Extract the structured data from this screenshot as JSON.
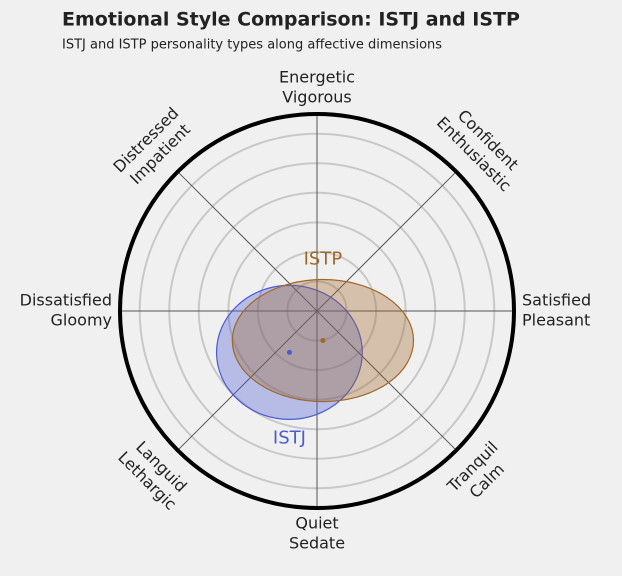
{
  "chart_data": {
    "type": "circumplex",
    "title": "Emotional Style Comparison: ISTJ and ISTP",
    "subtitle": "ISTJ and ISTP personality types along affective dimensions",
    "dimensions": [
      [
        "Energetic",
        "Vigorous"
      ],
      [
        "Confident",
        "Enthusiastic"
      ],
      [
        "Satisfied",
        "Pleasant"
      ],
      [
        "Tranquil",
        "Calm"
      ],
      [
        "Quiet",
        "Sedate"
      ],
      [
        "Languid",
        "Lethargic"
      ],
      [
        "Dissatisfied",
        "Gloomy"
      ],
      [
        "Distressed",
        "Impatient"
      ]
    ],
    "xlim": [
      -1,
      1
    ],
    "ylim": [
      -1,
      1
    ],
    "rings": [
      0.15,
      0.3,
      0.45,
      0.6,
      0.75,
      0.9
    ],
    "series": [
      {
        "name": "ISTJ",
        "color": "#4a5bd4",
        "x": -0.14,
        "y": -0.21,
        "rx": 0.37,
        "ry": 0.34,
        "label_position": "below"
      },
      {
        "name": "ISTP",
        "color": "#a0672a",
        "x": 0.03,
        "y": -0.15,
        "rx": 0.46,
        "ry": 0.31,
        "label_position": "above"
      }
    ]
  }
}
